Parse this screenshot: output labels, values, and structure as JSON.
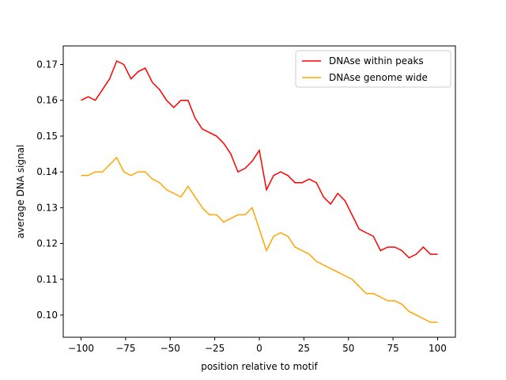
{
  "chart_data": {
    "type": "line",
    "xlabel": "position relative to motif",
    "ylabel": "average DNA signal",
    "x": [
      -100,
      -96,
      -92,
      -88,
      -84,
      -80,
      -76,
      -72,
      -68,
      -64,
      -60,
      -56,
      -52,
      -48,
      -44,
      -40,
      -36,
      -32,
      -28,
      -24,
      -20,
      -16,
      -12,
      -8,
      -4,
      0,
      4,
      8,
      12,
      16,
      20,
      24,
      28,
      32,
      36,
      40,
      44,
      48,
      52,
      56,
      60,
      64,
      68,
      72,
      76,
      80,
      84,
      88,
      92,
      96,
      100
    ],
    "series": [
      {
        "name": "DNAse within peaks",
        "color": "#ff0000",
        "values": [
          0.16,
          0.161,
          0.16,
          0.163,
          0.166,
          0.171,
          0.17,
          0.166,
          0.168,
          0.169,
          0.165,
          0.163,
          0.16,
          0.158,
          0.16,
          0.16,
          0.155,
          0.152,
          0.151,
          0.15,
          0.148,
          0.145,
          0.14,
          0.141,
          0.143,
          0.146,
          0.135,
          0.139,
          0.14,
          0.139,
          0.137,
          0.137,
          0.138,
          0.137,
          0.133,
          0.131,
          0.134,
          0.132,
          0.128,
          0.124,
          0.123,
          0.122,
          0.118,
          0.119,
          0.119,
          0.118,
          0.116,
          0.117,
          0.119,
          0.117,
          0.117
        ]
      },
      {
        "name": "DNAse genome wide",
        "color": "#ffa500",
        "values": [
          0.139,
          0.139,
          0.14,
          0.14,
          0.142,
          0.144,
          0.14,
          0.139,
          0.14,
          0.14,
          0.138,
          0.137,
          0.135,
          0.134,
          0.133,
          0.136,
          0.133,
          0.13,
          0.128,
          0.128,
          0.126,
          0.127,
          0.128,
          0.128,
          0.13,
          0.124,
          0.118,
          0.122,
          0.123,
          0.122,
          0.119,
          0.118,
          0.117,
          0.115,
          0.114,
          0.113,
          0.112,
          0.111,
          0.11,
          0.108,
          0.106,
          0.106,
          0.105,
          0.104,
          0.104,
          0.103,
          0.101,
          0.1,
          0.099,
          0.098,
          0.098
        ]
      }
    ],
    "xlim": [
      -110,
      110
    ],
    "ylim": [
      0.0938,
      0.1752
    ],
    "xticks": [
      {
        "value": -100,
        "label": "−100"
      },
      {
        "value": -75,
        "label": "−75"
      },
      {
        "value": -50,
        "label": "−50"
      },
      {
        "value": -25,
        "label": "−25"
      },
      0,
      25,
      50,
      75,
      100
    ],
    "yticks": [
      {
        "value": 0.1,
        "label": "0.10"
      },
      0.11,
      0.12,
      0.13,
      0.14,
      0.15,
      0.16,
      0.17
    ],
    "legend": "upper right"
  }
}
